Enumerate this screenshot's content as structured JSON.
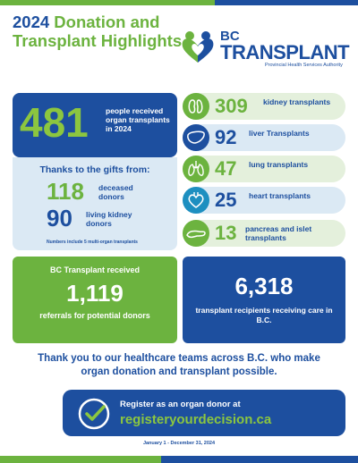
{
  "header": {
    "title_year": "2024",
    "title_rest": "Donation and Transplant Highlights"
  },
  "logo": {
    "line1": "BC",
    "line2": "TRANSPLANT",
    "line3": "Provincial Health Services Authority"
  },
  "recipients": {
    "number": "481",
    "text": "people received organ transplants in 2024"
  },
  "gifts": {
    "heading": "Thanks to the gifts from:",
    "deceased_number": "118",
    "deceased_label": "deceased donors",
    "living_number": "90",
    "living_label": "living kidney donors",
    "footnote": "Numbers include 5 multi-organ transplants"
  },
  "organs": [
    {
      "icon": "kidney-icon",
      "number": "309",
      "label": "kidney transplants",
      "bg": "#e4f0dc",
      "icon_bg": "#6cb33f",
      "num_color": "#6cb33f"
    },
    {
      "icon": "liver-icon",
      "number": "92",
      "label": "liver Transplants",
      "bg": "#dbe9f4",
      "icon_bg": "#1d4f9f",
      "num_color": "#1d4f9f"
    },
    {
      "icon": "lungs-icon",
      "number": "47",
      "label": "lung transplants",
      "bg": "#e4f0dc",
      "icon_bg": "#6cb33f",
      "num_color": "#6cb33f"
    },
    {
      "icon": "heart-icon",
      "number": "25",
      "label": "heart transplants",
      "bg": "#dbe9f4",
      "icon_bg": "#1d8fc0",
      "num_color": "#1d4f9f"
    },
    {
      "icon": "pancreas-icon",
      "number": "13",
      "label": "pancreas and islet transplants",
      "bg": "#e4f0dc",
      "icon_bg": "#6cb33f",
      "num_color": "#6cb33f"
    }
  ],
  "referrals": {
    "top": "BC Transplant received",
    "number": "1,119",
    "bottom": "referrals for potential donors"
  },
  "care": {
    "number": "6,318",
    "text": "transplant recipients receiving care in B.C."
  },
  "thanks_message": "Thank you to our healthcare teams across B.C. who make organ donation and transplant possible.",
  "register": {
    "line1": "Register as an organ donor at",
    "url": "registeryourdecision.ca"
  },
  "dates": "January 1 - December 31, 2024",
  "colors": {
    "brand_blue": "#1d4f9f",
    "brand_green": "#6cb33f",
    "light_green": "#8cc63f"
  }
}
